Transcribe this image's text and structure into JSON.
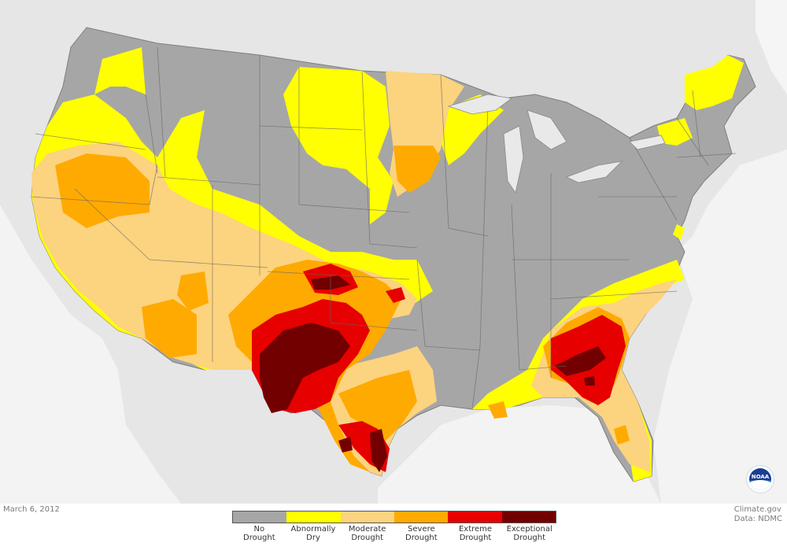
{
  "date": "March 6, 2012",
  "credit": {
    "line1": "Climate.gov",
    "line2": "Data: NDMC"
  },
  "legend": [
    {
      "label": "No Drought",
      "color": "#a6a6a6"
    },
    {
      "label": "Abnormally Dry",
      "color": "#ffff00"
    },
    {
      "label": "Moderate Drought",
      "color": "#fcd37f"
    },
    {
      "label": "Severe Drought",
      "color": "#ffaa00"
    },
    {
      "label": "Extreme Drought",
      "color": "#e60000"
    },
    {
      "label": "Exceptional Drought",
      "color": "#730000"
    }
  ],
  "logo": {
    "text": "NOAA"
  }
}
